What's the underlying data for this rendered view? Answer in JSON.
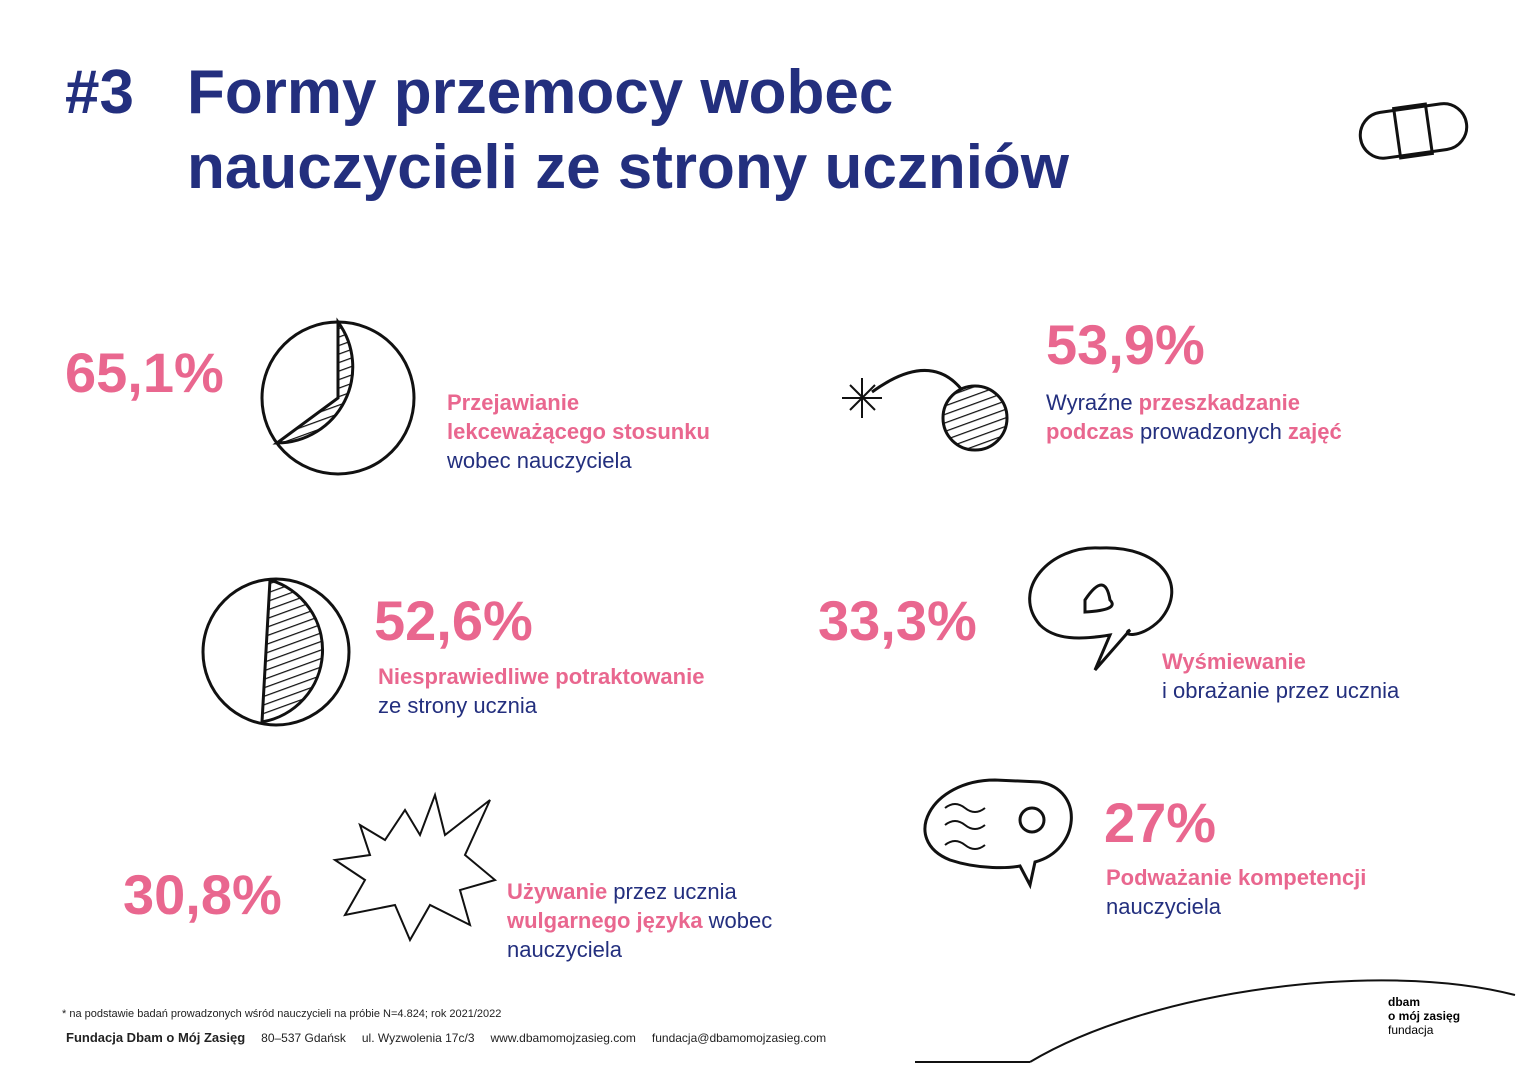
{
  "header": {
    "number": "#3",
    "title_line1": "Formy przemocy wobec",
    "title_line2_bold": "nauczycieli",
    "title_line2_rest": "ze strony uczniów"
  },
  "items": [
    {
      "percent": "65,1%",
      "lines": [
        [
          {
            "text": "Przejawianie",
            "bold": true
          }
        ],
        [
          {
            "text": "lekceważącego stosunku",
            "bold": true
          }
        ],
        [
          {
            "text": "wobec nauczyciela",
            "bold": false
          }
        ]
      ]
    },
    {
      "percent": "53,9%",
      "lines": [
        [
          {
            "text": "Wyraźne",
            "bold": false
          },
          {
            "text": "przeszkadzanie",
            "bold": true
          }
        ],
        [
          {
            "text": "podczas",
            "bold": true
          },
          {
            "text": "prowadzonych",
            "bold": false
          },
          {
            "text": "zajęć",
            "bold": true
          }
        ]
      ]
    },
    {
      "percent": "52,6%",
      "lines": [
        [
          {
            "text": "Niesprawiedliwe potraktowanie",
            "bold": true
          }
        ],
        [
          {
            "text": "ze strony ucznia",
            "bold": false
          }
        ]
      ]
    },
    {
      "percent": "33,3%",
      "lines": [
        [
          {
            "text": "Wyśmiewanie",
            "bold": true
          }
        ],
        [
          {
            "text": "i obrażanie przez ucznia",
            "bold": false
          }
        ]
      ]
    },
    {
      "percent": "30,8%",
      "lines": [
        [
          {
            "text": "Używanie",
            "bold": true
          },
          {
            "text": "przez ucznia",
            "bold": false
          }
        ],
        [
          {
            "text": "wulgarnego języka",
            "bold": true
          },
          {
            "text": "wobec",
            "bold": false
          }
        ],
        [
          {
            "text": "nauczyciela",
            "bold": false
          }
        ]
      ]
    },
    {
      "percent": "27%",
      "lines": [
        [
          {
            "text": "Podważanie kompetencji",
            "bold": true
          }
        ],
        [
          {
            "text": "nauczyciela",
            "bold": false
          }
        ]
      ]
    }
  ],
  "footer": {
    "note": "* na podstawie badań prowadzonych wśród nauczycieli na próbie N=4.824; rok 2021/2022",
    "organization": "Fundacja Dbam o Mój Zasięg",
    "postal": "80–537 Gdańsk",
    "street": "ul. Wyzwolenia 17c/3",
    "website": "www.dbamomojzasieg.com",
    "email": "fundacja@dbamomojzasieg.com"
  },
  "logo": {
    "line1": "dbam",
    "line2": "o mój zasięg",
    "line3": "fundacja"
  }
}
